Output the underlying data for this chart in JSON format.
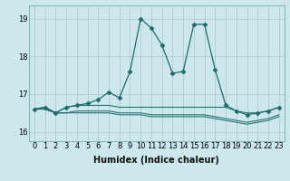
{
  "xlabel": "Humidex (Indice chaleur)",
  "background_color": "#cce8ec",
  "grid_color": "#b0cccc",
  "line_color": "#1e6b6b",
  "xlim": [
    -0.5,
    23.5
  ],
  "ylim": [
    15.75,
    19.35
  ],
  "yticks": [
    16,
    17,
    18,
    19
  ],
  "xticks": [
    0,
    1,
    2,
    3,
    4,
    5,
    6,
    7,
    8,
    9,
    10,
    11,
    12,
    13,
    14,
    15,
    16,
    17,
    18,
    19,
    20,
    21,
    22,
    23
  ],
  "series": [
    [
      16.6,
      16.65,
      16.5,
      16.65,
      16.7,
      16.75,
      16.85,
      17.05,
      16.9,
      17.6,
      19.0,
      18.75,
      18.3,
      17.55,
      17.6,
      18.85,
      18.85,
      17.65,
      16.7,
      16.55,
      16.45,
      16.5,
      16.55,
      16.65
    ],
    [
      16.6,
      16.65,
      16.5,
      16.65,
      16.7,
      16.7,
      16.7,
      16.7,
      16.65,
      16.65,
      16.65,
      16.65,
      16.65,
      16.65,
      16.65,
      16.65,
      16.65,
      16.65,
      16.65,
      16.55,
      16.5,
      16.5,
      16.55,
      16.65
    ],
    [
      16.6,
      16.6,
      16.5,
      16.5,
      16.55,
      16.55,
      16.55,
      16.55,
      16.5,
      16.5,
      16.5,
      16.45,
      16.45,
      16.45,
      16.45,
      16.45,
      16.45,
      16.4,
      16.35,
      16.3,
      16.25,
      16.3,
      16.35,
      16.45
    ],
    [
      16.6,
      16.6,
      16.5,
      16.5,
      16.5,
      16.5,
      16.5,
      16.5,
      16.45,
      16.45,
      16.45,
      16.4,
      16.4,
      16.4,
      16.4,
      16.4,
      16.4,
      16.35,
      16.3,
      16.25,
      16.2,
      16.25,
      16.3,
      16.4
    ]
  ],
  "marker": "D",
  "marker_size": 2.5,
  "tick_fontsize": 6.0,
  "xlabel_fontsize": 7.0
}
